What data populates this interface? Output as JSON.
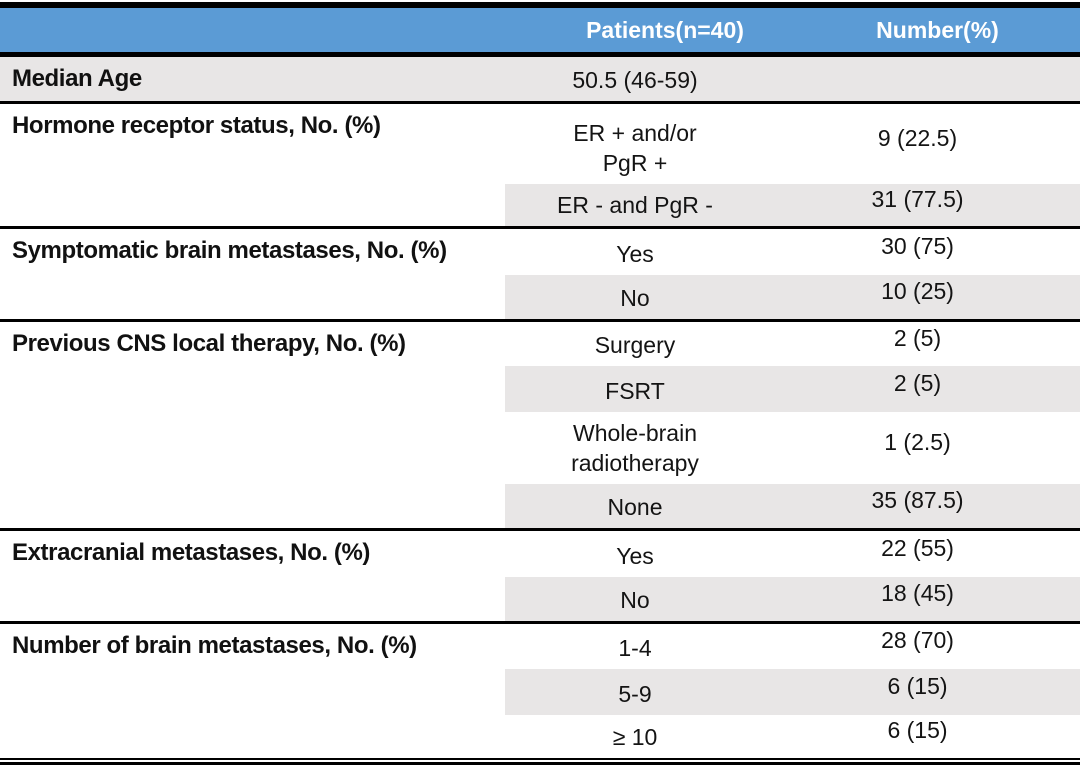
{
  "table": {
    "header": {
      "label_col": "",
      "patients_col": "Patients(n=40)",
      "number_col": "Number(%)"
    },
    "groups": [
      {
        "label": "Median Age",
        "rows": [
          {
            "patients": "50.5 (46-59)",
            "number": ""
          }
        ]
      },
      {
        "label": "Hormone receptor status, No. (%)",
        "rows": [
          {
            "patients_lines": [
              "ER + and/or",
              "PgR +"
            ],
            "number": "9 (22.5)"
          },
          {
            "patients": "ER - and PgR -",
            "number": "31 (77.5)"
          }
        ]
      },
      {
        "label": "Symptomatic brain metastases, No. (%)",
        "rows": [
          {
            "patients": "Yes",
            "number": "30 (75)"
          },
          {
            "patients": "No",
            "number": "10 (25)"
          }
        ]
      },
      {
        "label": "Previous CNS local therapy, No. (%)",
        "rows": [
          {
            "patients": "Surgery",
            "number": "2 (5)"
          },
          {
            "patients": "FSRT",
            "number": "2 (5)"
          },
          {
            "patients_lines": [
              "Whole-brain",
              "radiotherapy"
            ],
            "number": "1 (2.5)"
          },
          {
            "patients": "None",
            "number": "35 (87.5)"
          }
        ]
      },
      {
        "label": "Extracranial metastases, No. (%)",
        "rows": [
          {
            "patients": "Yes",
            "number": "22 (55)"
          },
          {
            "patients": "No",
            "number": "18 (45)"
          }
        ]
      },
      {
        "label": "Number of brain metastases, No. (%)",
        "rows": [
          {
            "patients": "1-4",
            "number": "28 (70)"
          },
          {
            "patients": "5-9",
            "number": "6 (15)"
          },
          {
            "patients": "≥ 10",
            "number": "6 (15)"
          }
        ]
      }
    ],
    "colors": {
      "header_bg": "#5B9BD5",
      "header_text": "#FFFFFF",
      "row_shade": "#E8E6E6",
      "rule": "#000000"
    }
  }
}
